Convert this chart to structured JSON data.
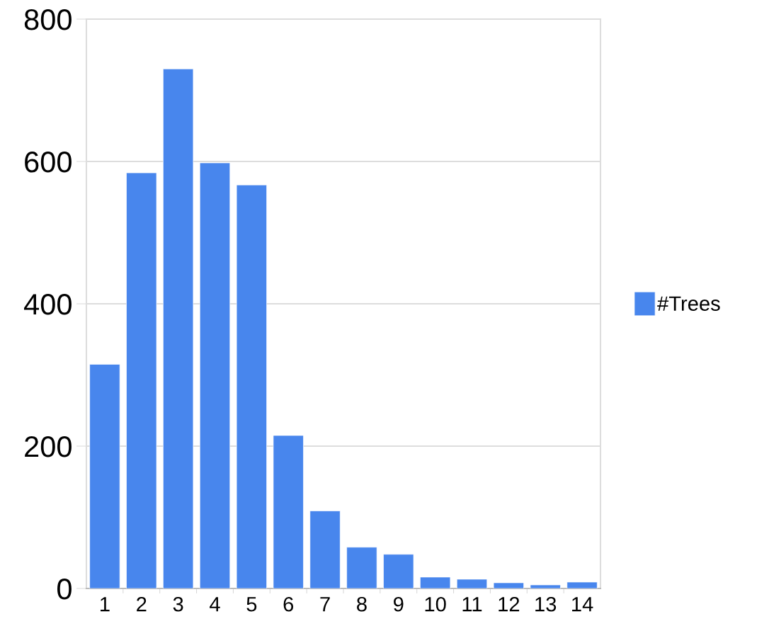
{
  "chart_data": {
    "type": "bar",
    "categories": [
      "1",
      "2",
      "3",
      "4",
      "5",
      "6",
      "7",
      "8",
      "9",
      "10",
      "11",
      "12",
      "13",
      "14"
    ],
    "series": [
      {
        "name": "#Trees",
        "color": "#4886ed",
        "values": [
          315,
          584,
          730,
          598,
          567,
          215,
          109,
          58,
          48,
          16,
          13,
          8,
          5,
          9
        ]
      }
    ],
    "ylim": [
      0,
      800
    ],
    "yticks": [
      0,
      200,
      400,
      600,
      800
    ],
    "grid": "y",
    "legend": "right"
  }
}
